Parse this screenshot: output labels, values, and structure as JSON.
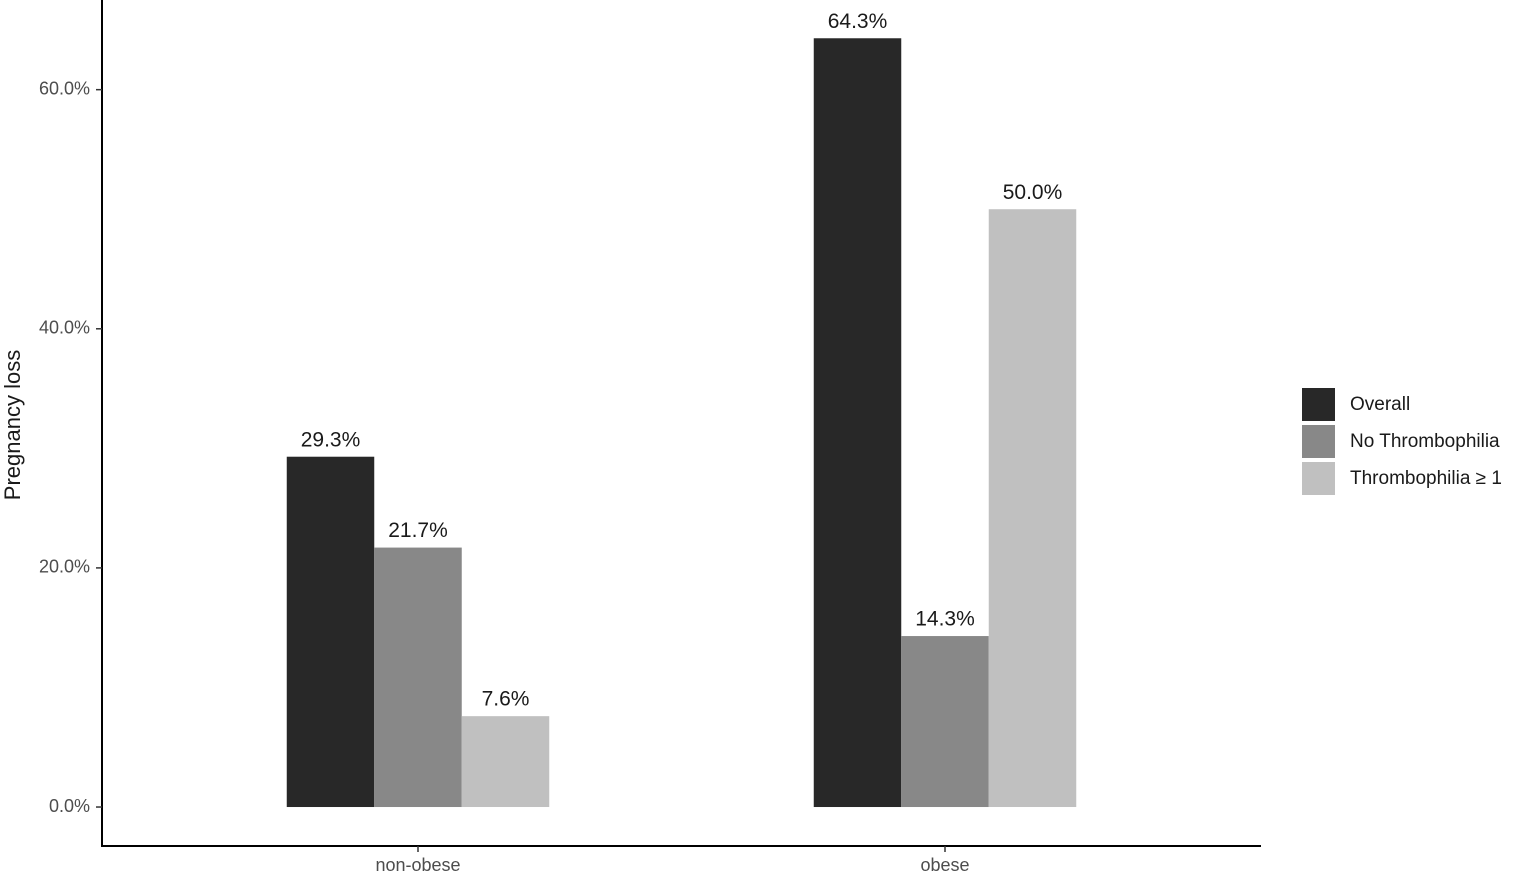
{
  "chart_data": {
    "type": "bar",
    "y_label": "Pregnancy loss",
    "categories": [
      "non-obese",
      "obese"
    ],
    "series": [
      {
        "name": "Overall",
        "color": "#282828",
        "values": [
          29.3,
          64.3
        ],
        "value_labels": [
          "29.3%",
          "64.3%"
        ]
      },
      {
        "name": "No Thrombophilia",
        "color": "#888888",
        "values": [
          21.7,
          14.3
        ],
        "value_labels": [
          "21.7%",
          "14.3%"
        ]
      },
      {
        "name": "Thrombophilia ≥ 1",
        "color": "#c0c0c0",
        "values": [
          7.6,
          50.0
        ],
        "value_labels": [
          "7.6%",
          "50.0%"
        ]
      }
    ],
    "ylim": [
      -3.26,
      67.5
    ],
    "yticks": [
      {
        "value": 0,
        "label": "0.0%"
      },
      {
        "value": 20,
        "label": "20.0%"
      },
      {
        "value": 40,
        "label": "40.0%"
      },
      {
        "value": 60,
        "label": "60.0%"
      }
    ],
    "grid": false,
    "legend": "right"
  }
}
